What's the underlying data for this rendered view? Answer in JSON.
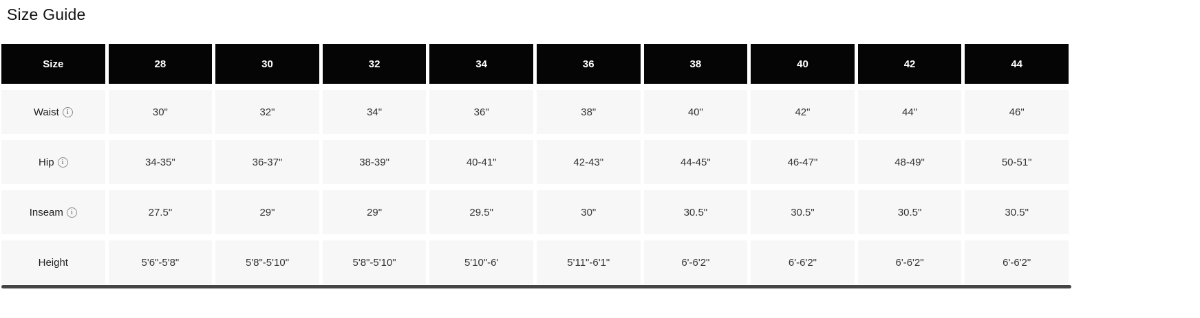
{
  "page": {
    "title": "Size Guide"
  },
  "icons": {
    "info_glyph": "i"
  },
  "colors": {
    "header_bg": "#050505",
    "header_text": "#ffffff",
    "row_bg": "#f7f7f7",
    "cell_text": "#333333",
    "title_text": "#121212"
  },
  "chart_data": {
    "type": "table",
    "title": "Size Guide",
    "columns": [
      "Size",
      "28",
      "30",
      "32",
      "34",
      "36",
      "38",
      "40",
      "42",
      "44"
    ],
    "rows": [
      [
        "Waist",
        "30\"",
        "32\"",
        "34\"",
        "36\"",
        "38\"",
        "40\"",
        "42\"",
        "44\"",
        "46\""
      ],
      [
        "Hip",
        "34-35\"",
        "36-37\"",
        "38-39\"",
        "40-41\"",
        "42-43\"",
        "44-45\"",
        "46-47\"",
        "48-49\"",
        "50-51\""
      ],
      [
        "Inseam",
        "27.5\"",
        "29\"",
        "29\"",
        "29.5\"",
        "30\"",
        "30.5\"",
        "30.5\"",
        "30.5\"",
        "30.5\""
      ],
      [
        "Height",
        "5'6\"-5'8\"",
        "5'8\"-5'10\"",
        "5'8\"-5'10\"",
        "5'10\"-6'",
        "5'11\"-6'1\"",
        "6'-6'2\"",
        "6'-6'2\"",
        "6'-6'2\"",
        "6'-6'2\""
      ]
    ]
  },
  "table": {
    "header": {
      "label": "Size",
      "sizes": [
        "28",
        "30",
        "32",
        "34",
        "36",
        "38",
        "40",
        "42",
        "44"
      ]
    },
    "rows": [
      {
        "label": "Waist",
        "has_info": true,
        "values": [
          "30\"",
          "32\"",
          "34\"",
          "36\"",
          "38\"",
          "40\"",
          "42\"",
          "44\"",
          "46\""
        ]
      },
      {
        "label": "Hip",
        "has_info": true,
        "values": [
          "34-35\"",
          "36-37\"",
          "38-39\"",
          "40-41\"",
          "42-43\"",
          "44-45\"",
          "46-47\"",
          "48-49\"",
          "50-51\""
        ]
      },
      {
        "label": "Inseam",
        "has_info": true,
        "values": [
          "27.5\"",
          "29\"",
          "29\"",
          "29.5\"",
          "30\"",
          "30.5\"",
          "30.5\"",
          "30.5\"",
          "30.5\""
        ]
      },
      {
        "label": "Height",
        "has_info": false,
        "values": [
          "5'6\"-5'8\"",
          "5'8\"-5'10\"",
          "5'8\"-5'10\"",
          "5'10\"-6'",
          "5'11\"-6'1\"",
          "6'-6'2\"",
          "6'-6'2\"",
          "6'-6'2\"",
          "6'-6'2\""
        ]
      }
    ]
  }
}
